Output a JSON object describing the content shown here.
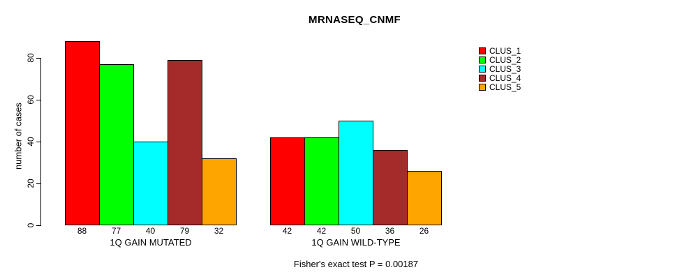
{
  "chart_data": {
    "type": "bar",
    "title": "MRNASEQ_CNMF",
    "ylabel": "number of cases",
    "xlabel": "",
    "categories": [
      "1Q GAIN MUTATED",
      "1Q GAIN WILD-TYPE"
    ],
    "series": [
      {
        "name": "CLUS_1",
        "color": "#FF0000",
        "values": [
          88,
          42
        ]
      },
      {
        "name": "CLUS_2",
        "color": "#00FF00",
        "values": [
          77,
          42
        ]
      },
      {
        "name": "CLUS_3",
        "color": "#00FFFF",
        "values": [
          40,
          50
        ]
      },
      {
        "name": "CLUS_4",
        "color": "#A52A2A",
        "values": [
          79,
          36
        ]
      },
      {
        "name": "CLUS_5",
        "color": "#FFA500",
        "values": [
          32,
          26
        ]
      }
    ],
    "yticks": [
      0,
      20,
      40,
      60,
      80
    ],
    "ylim": [
      0,
      88
    ],
    "grid": false,
    "bar_value_labels": true,
    "legend_position": "top-right",
    "annotation": "Fisher's exact test P = 0.00187",
    "axis_color": "#000000",
    "bar_border_color": "#000000"
  }
}
